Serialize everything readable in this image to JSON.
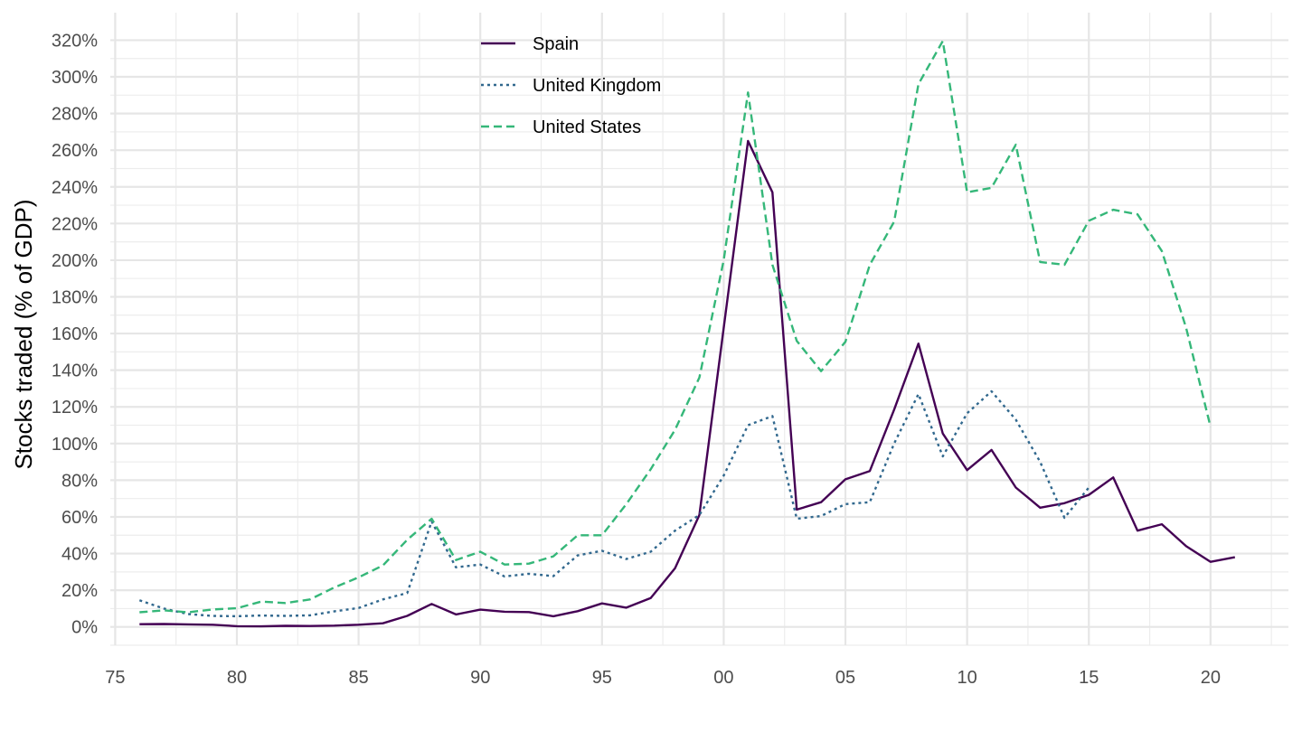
{
  "chart_data": {
    "type": "line",
    "xlabel": "",
    "ylabel": "Stocks traded (% of GDP)",
    "xlim": [
      1974.8,
      2023.2
    ],
    "ylim": [
      -10,
      335
    ],
    "x_ticks": [
      1975,
      1980,
      1985,
      1990,
      1995,
      2000,
      2005,
      2010,
      2015,
      2020
    ],
    "x_tick_labels": [
      "75",
      "80",
      "85",
      "90",
      "95",
      "00",
      "05",
      "10",
      "15",
      "20"
    ],
    "y_ticks": [
      0,
      20,
      40,
      60,
      80,
      100,
      120,
      140,
      160,
      180,
      200,
      220,
      240,
      260,
      280,
      300,
      320
    ],
    "y_tick_labels": [
      "0%",
      "20%",
      "40%",
      "60%",
      "80%",
      "100%",
      "120%",
      "140%",
      "160%",
      "180%",
      "200%",
      "220%",
      "240%",
      "260%",
      "280%",
      "300%",
      "320%"
    ],
    "grid": true,
    "legend_position": "top-center",
    "series": [
      {
        "name": "Spain",
        "color": "#440154",
        "dash": "solid",
        "x": [
          1976,
          1977,
          1978,
          1979,
          1980,
          1981,
          1982,
          1983,
          1984,
          1985,
          1986,
          1987,
          1988,
          1989,
          1990,
          1991,
          1992,
          1993,
          1994,
          1995,
          1996,
          1997,
          1998,
          1999,
          2000,
          2001,
          2002,
          2003,
          2004,
          2005,
          2006,
          2007,
          2008,
          2009,
          2010,
          2011,
          2012,
          2013,
          2014,
          2015,
          2016,
          2017,
          2018,
          2019,
          2020,
          2021
        ],
        "values": [
          1.5,
          1.6,
          1.4,
          1.2,
          0.4,
          0.3,
          0.6,
          0.5,
          0.7,
          1.2,
          2,
          6,
          12.5,
          6.8,
          9.4,
          8.3,
          8.1,
          5.8,
          8.6,
          12.8,
          10.5,
          15.8,
          32,
          61,
          163,
          265,
          237,
          64,
          68,
          80.5,
          85,
          118.5,
          154.5,
          105.5,
          85.5,
          96.5,
          76,
          65,
          67.5,
          72,
          81.5,
          52.5,
          56,
          44,
          35.5,
          38
        ]
      },
      {
        "name": "United Kingdom",
        "color": "#31688e",
        "dash": "dotted",
        "x": [
          1976,
          1977,
          1978,
          1979,
          1980,
          1981,
          1982,
          1983,
          1984,
          1985,
          1986,
          1987,
          1988,
          1989,
          1990,
          1991,
          1992,
          1993,
          1994,
          1995,
          1996,
          1997,
          1998,
          1999,
          2000,
          2001,
          2002,
          2003,
          2004,
          2005,
          2006,
          2007,
          2008,
          2009,
          2010,
          2011,
          2012,
          2013,
          2014,
          2015
        ],
        "values": [
          14.5,
          10,
          7,
          6,
          5.8,
          6.2,
          6,
          6.3,
          8.5,
          10.3,
          15,
          18.5,
          57.5,
          32.5,
          34,
          27.5,
          29,
          27.7,
          39,
          41.5,
          37,
          41,
          52.5,
          61,
          82.5,
          110,
          115,
          59,
          60.5,
          67,
          68,
          100,
          127,
          93,
          116.5,
          128.5,
          113,
          90,
          59.5,
          76
        ]
      },
      {
        "name": "United States",
        "color": "#35b779",
        "dash": "dashed",
        "x": [
          1976,
          1977,
          1978,
          1979,
          1980,
          1981,
          1982,
          1983,
          1984,
          1985,
          1986,
          1987,
          1988,
          1989,
          1990,
          1991,
          1992,
          1993,
          1994,
          1995,
          1996,
          1997,
          1998,
          1999,
          2000,
          2001,
          2002,
          2003,
          2004,
          2005,
          2006,
          2007,
          2008,
          2009,
          2010,
          2011,
          2012,
          2013,
          2014,
          2015,
          2016,
          2017,
          2018,
          2019,
          2020
        ],
        "values": [
          8,
          9,
          8,
          9.5,
          10.2,
          13.8,
          13,
          15,
          21.5,
          27,
          33.5,
          47.5,
          59,
          36.5,
          41,
          34,
          34.5,
          38.5,
          50,
          50,
          67,
          86,
          107.5,
          136,
          200,
          291.5,
          197.5,
          156,
          139.5,
          155.5,
          197.5,
          221,
          296,
          319.5,
          237,
          239.5,
          263,
          199,
          197.5,
          221.5,
          227.5,
          225,
          205,
          163,
          109
        ]
      }
    ]
  }
}
